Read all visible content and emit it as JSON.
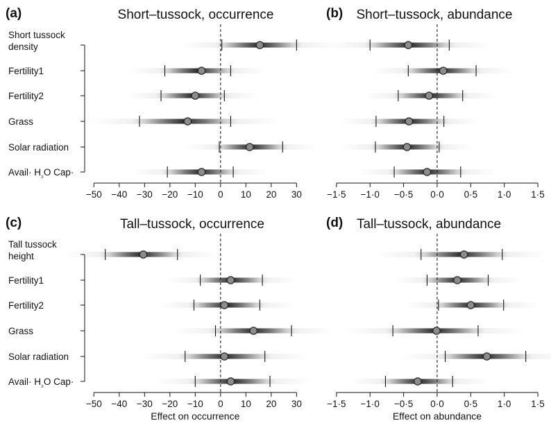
{
  "chart_data": [
    {
      "type": "forest",
      "panel_letter": "(a)",
      "title": "Short–tussock, occurrence",
      "xlabel": "",
      "xlim": [
        -52,
        31
      ],
      "xticks": [
        -50,
        -40,
        -30,
        -20,
        -10,
        0,
        10,
        20,
        30
      ],
      "tick_labels": [
        "−50",
        "−40",
        "−30",
        "−20",
        "−10",
        "0",
        "10",
        "20",
        "30"
      ],
      "reference_line": 0,
      "rows": [
        {
          "label": [
            "Short tussock",
            "density"
          ],
          "estimate": 15.5,
          "ci_low": 0.5,
          "ci_high": 30.0
        },
        {
          "label": [
            "Fertility1"
          ],
          "estimate": -7.5,
          "ci_low": -22.0,
          "ci_high": 4.0
        },
        {
          "label": [
            "Fertility2"
          ],
          "estimate": -10.0,
          "ci_low": -23.5,
          "ci_high": 1.5
        },
        {
          "label": [
            "Grass"
          ],
          "estimate": -13.0,
          "ci_low": -32.0,
          "ci_high": 4.0
        },
        {
          "label": [
            "Solar radiation"
          ],
          "estimate": 11.5,
          "ci_low": -0.5,
          "ci_high": 24.5
        },
        {
          "label": [
            "Avail· H",
            "₂",
            "O Cap·"
          ],
          "estimate": -7.5,
          "ci_low": -21.0,
          "ci_high": 5.0
        }
      ]
    },
    {
      "type": "forest",
      "panel_letter": "(b)",
      "title": "Short–tussock, abundance",
      "xlabel": "",
      "xlim": [
        -1.55,
        1.52
      ],
      "xticks": [
        -1.5,
        -1.0,
        -0.5,
        0,
        0.5,
        1.0,
        1.5
      ],
      "tick_labels": [
        "−1·5",
        "−1·0",
        "−0·5",
        "0·0",
        "0·5",
        "1·0",
        "1·5"
      ],
      "reference_line": 0,
      "rows": [
        {
          "estimate": -0.43,
          "ci_low": -1.0,
          "ci_high": 0.18
        },
        {
          "estimate": 0.09,
          "ci_low": -0.43,
          "ci_high": 0.58
        },
        {
          "estimate": -0.12,
          "ci_low": -0.58,
          "ci_high": 0.38
        },
        {
          "estimate": -0.42,
          "ci_low": -0.91,
          "ci_high": 0.1
        },
        {
          "estimate": -0.45,
          "ci_low": -0.92,
          "ci_high": 0.03
        },
        {
          "estimate": -0.15,
          "ci_low": -0.64,
          "ci_high": 0.35
        }
      ]
    },
    {
      "type": "forest",
      "panel_letter": "(c)",
      "title": "Tall–tussock, occurrence",
      "xlabel": "Effect on occurrence",
      "xlim": [
        -52,
        31
      ],
      "xticks": [
        -50,
        -40,
        -30,
        -20,
        -10,
        0,
        10,
        20,
        30
      ],
      "tick_labels": [
        "−50",
        "−40",
        "−30",
        "−20",
        "−10",
        "0",
        "10",
        "20",
        "30"
      ],
      "reference_line": 0,
      "rows": [
        {
          "label": [
            "Tall tussock",
            "height"
          ],
          "estimate": -30.5,
          "ci_low": -45.5,
          "ci_high": -17.0
        },
        {
          "label": [
            "Fertility1"
          ],
          "estimate": 4.0,
          "ci_low": -8.0,
          "ci_high": 16.5
        },
        {
          "label": [
            "Fertility2"
          ],
          "estimate": 1.5,
          "ci_low": -10.5,
          "ci_high": 15.5
        },
        {
          "label": [
            "Grass"
          ],
          "estimate": 13.0,
          "ci_low": -2.0,
          "ci_high": 28.0
        },
        {
          "label": [
            "Solar radiation"
          ],
          "estimate": 1.5,
          "ci_low": -14.0,
          "ci_high": 17.5
        },
        {
          "label": [
            "Avail· H",
            "₂",
            "O Cap·"
          ],
          "estimate": 4.0,
          "ci_low": -10.0,
          "ci_high": 19.5
        }
      ]
    },
    {
      "type": "forest",
      "panel_letter": "(d)",
      "title": "Tall–tussock, abundance",
      "xlabel": "Effect on abundance",
      "xlim": [
        -1.55,
        1.52
      ],
      "xticks": [
        -1.5,
        -1.0,
        -0.5,
        0,
        0.5,
        1.0,
        1.5
      ],
      "tick_labels": [
        "−1·5",
        "−1·0",
        "−0·5",
        "0·0",
        "0·5",
        "1·0",
        "1·5"
      ],
      "reference_line": 0,
      "rows": [
        {
          "estimate": 0.4,
          "ci_low": -0.24,
          "ci_high": 0.97
        },
        {
          "estimate": 0.3,
          "ci_low": -0.15,
          "ci_high": 0.76
        },
        {
          "estimate": 0.5,
          "ci_low": 0.02,
          "ci_high": 0.99
        },
        {
          "estimate": -0.01,
          "ci_low": -0.66,
          "ci_high": 0.61
        },
        {
          "estimate": 0.74,
          "ci_low": 0.12,
          "ci_high": 1.32
        },
        {
          "estimate": -0.29,
          "ci_low": -0.77,
          "ci_high": 0.23
        }
      ]
    }
  ]
}
